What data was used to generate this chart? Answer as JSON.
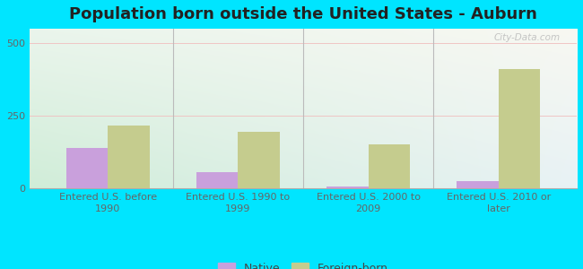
{
  "title": "Population born outside the United States - Auburn",
  "categories": [
    "Entered U.S. before\n1990",
    "Entered U.S. 1990 to\n1999",
    "Entered U.S. 2000 to\n2009",
    "Entered U.S. 2010 or\nlater"
  ],
  "native_values": [
    140,
    55,
    5,
    25
  ],
  "foreign_values": [
    215,
    195,
    150,
    410
  ],
  "native_color": "#c9a0dc",
  "foreign_color": "#c5cc8e",
  "bg_color_topleft": "#eaf5ec",
  "bg_color_topright": "#f5f5f0",
  "bg_color_bottomleft": "#d8f0e0",
  "bg_color_bottomright": "#e8f0f5",
  "outer_background": "#00e5ff",
  "ylim": [
    0,
    550
  ],
  "yticks": [
    0,
    250,
    500
  ],
  "bar_width": 0.32,
  "title_fontsize": 13,
  "tick_fontsize": 8,
  "legend_fontsize": 9,
  "grid_color": "#f0c0c0",
  "divider_color": "#bbbbbb",
  "watermark_text": "City-Data.com"
}
